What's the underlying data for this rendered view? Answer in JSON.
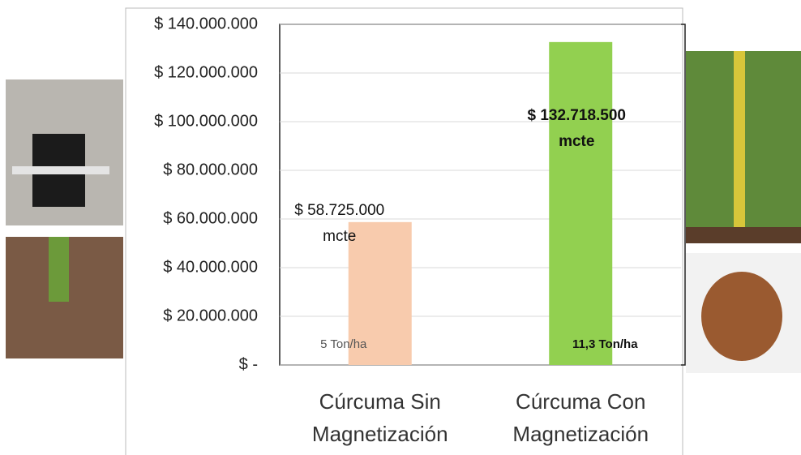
{
  "chart_data": {
    "type": "bar",
    "categories": [
      "Cúrcuma Sin Magnetización",
      "Cúrcuma Con Magnetización"
    ],
    "values": [
      58725000,
      132718500
    ],
    "value_labels": [
      "$ 58.725.000 mcte",
      "$ 132.718.500 mcte"
    ],
    "colors": [
      "#f8cbad",
      "#92d050"
    ],
    "bar_notes": [
      "5 Ton/ha",
      "11,3 Ton/ha"
    ],
    "ylim": [
      0,
      140000000
    ],
    "yticks": [
      {
        "value": 0,
        "label": "$ -"
      },
      {
        "value": 20000000,
        "label": "$ 20.000.000"
      },
      {
        "value": 40000000,
        "label": "$ 40.000.000"
      },
      {
        "value": 60000000,
        "label": "$ 60.000.000"
      },
      {
        "value": 80000000,
        "label": "$ 80.000.000"
      },
      {
        "value": 100000000,
        "label": "$ 100.000.000"
      },
      {
        "value": 120000000,
        "label": "$ 120.000.000"
      },
      {
        "value": 140000000,
        "label": "$ 140.000.000"
      }
    ],
    "grid": true
  }
}
